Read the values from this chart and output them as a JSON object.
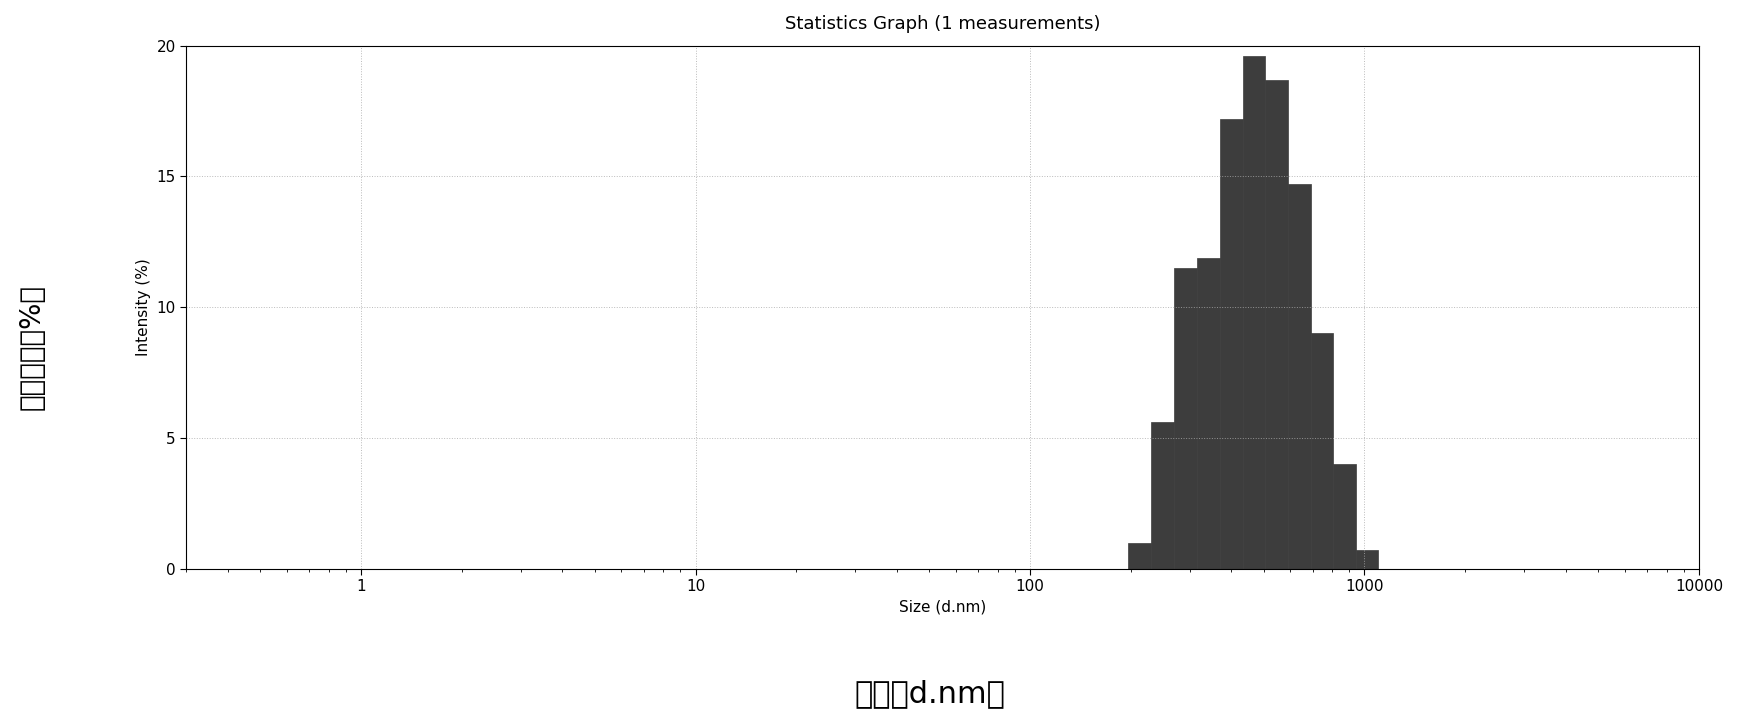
{
  "title": "Statistics Graph (1 measurements)",
  "xlabel_en": "Size (d.nm)",
  "xlabel_cn": "尺寸（d.nm）",
  "ylabel_en": "Intensity (%)",
  "ylabel_cn": "强度分布（%）",
  "bar_color": "#3d3d3d",
  "bar_edge_color": "#3d3d3d",
  "background_color": "#ffffff",
  "ylim": [
    0,
    20
  ],
  "yticks": [
    0,
    5,
    10,
    15,
    20
  ],
  "xlim_log": [
    0.3,
    10000
  ],
  "xticks_log": [
    1,
    10,
    100,
    1000,
    10000
  ],
  "bars": [
    {
      "x_left": 196,
      "x_right": 230,
      "height": 1.0
    },
    {
      "x_left": 230,
      "x_right": 270,
      "height": 5.6
    },
    {
      "x_left": 270,
      "x_right": 316,
      "height": 11.5
    },
    {
      "x_left": 316,
      "x_right": 370,
      "height": 11.9
    },
    {
      "x_left": 370,
      "x_right": 432,
      "height": 17.2
    },
    {
      "x_left": 432,
      "x_right": 505,
      "height": 19.6
    },
    {
      "x_left": 505,
      "x_right": 590,
      "height": 18.7
    },
    {
      "x_left": 590,
      "x_right": 690,
      "height": 14.7
    },
    {
      "x_left": 690,
      "x_right": 806,
      "height": 9.0
    },
    {
      "x_left": 806,
      "x_right": 942,
      "height": 4.0
    },
    {
      "x_left": 942,
      "x_right": 1100,
      "height": 0.7
    }
  ],
  "grid_color": "#aaaaaa",
  "title_fontsize": 13,
  "label_fontsize": 11,
  "cn_label_fontsize": 22,
  "cn_ylabel_fontsize": 20,
  "tick_fontsize": 11
}
